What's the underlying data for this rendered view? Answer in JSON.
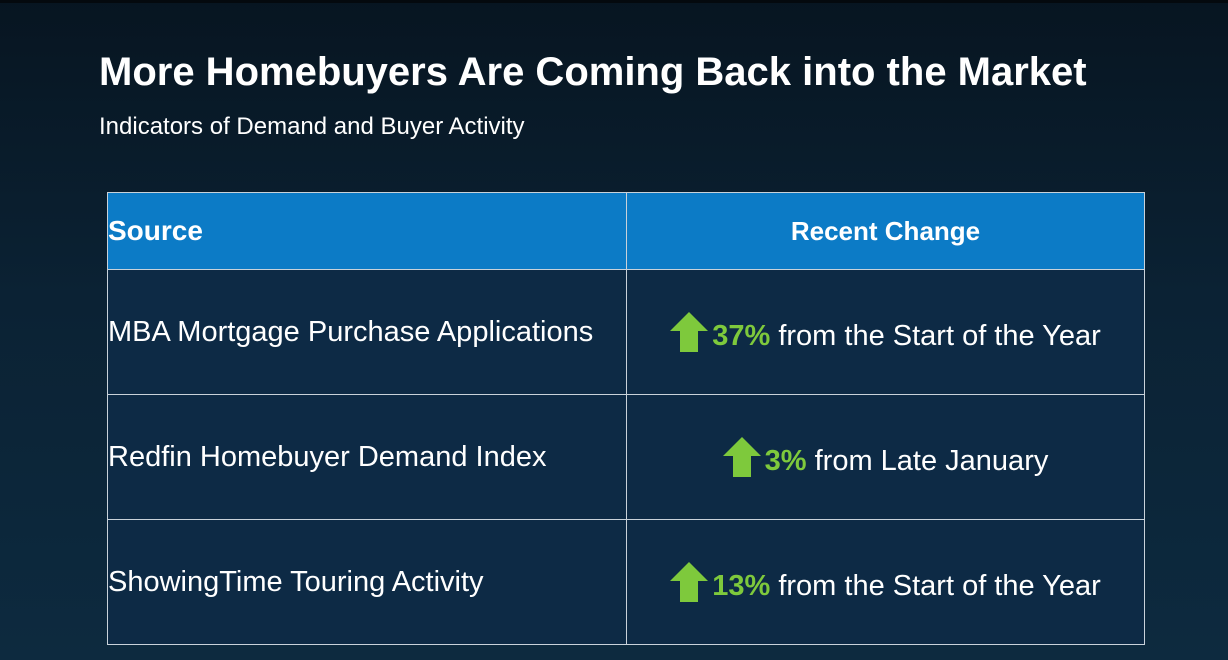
{
  "slide": {
    "title": "More Homebuyers Are Coming Back into the Market",
    "subtitle": "Indicators of Demand and Buyer Activity"
  },
  "table": {
    "headers": {
      "source": "Source",
      "change": "Recent Change"
    },
    "rows": [
      {
        "source": "MBA Mortgage Purchase Applications",
        "icon": "arrow-up-icon",
        "percent": "37%",
        "change_text": " from the Start of the Year"
      },
      {
        "source": "Redfin Homebuyer Demand Index",
        "icon": "arrow-up-icon",
        "percent": "3%",
        "change_text": " from Late January"
      },
      {
        "source": "ShowingTime Touring Activity",
        "icon": "arrow-up-icon",
        "percent": "13%",
        "change_text": " from the Start of the Year"
      }
    ]
  },
  "colors": {
    "header_bg": "#0c7bc6",
    "row_bg": "#0d2a45",
    "accent_green": "#7ec93c",
    "text": "#ffffff"
  }
}
